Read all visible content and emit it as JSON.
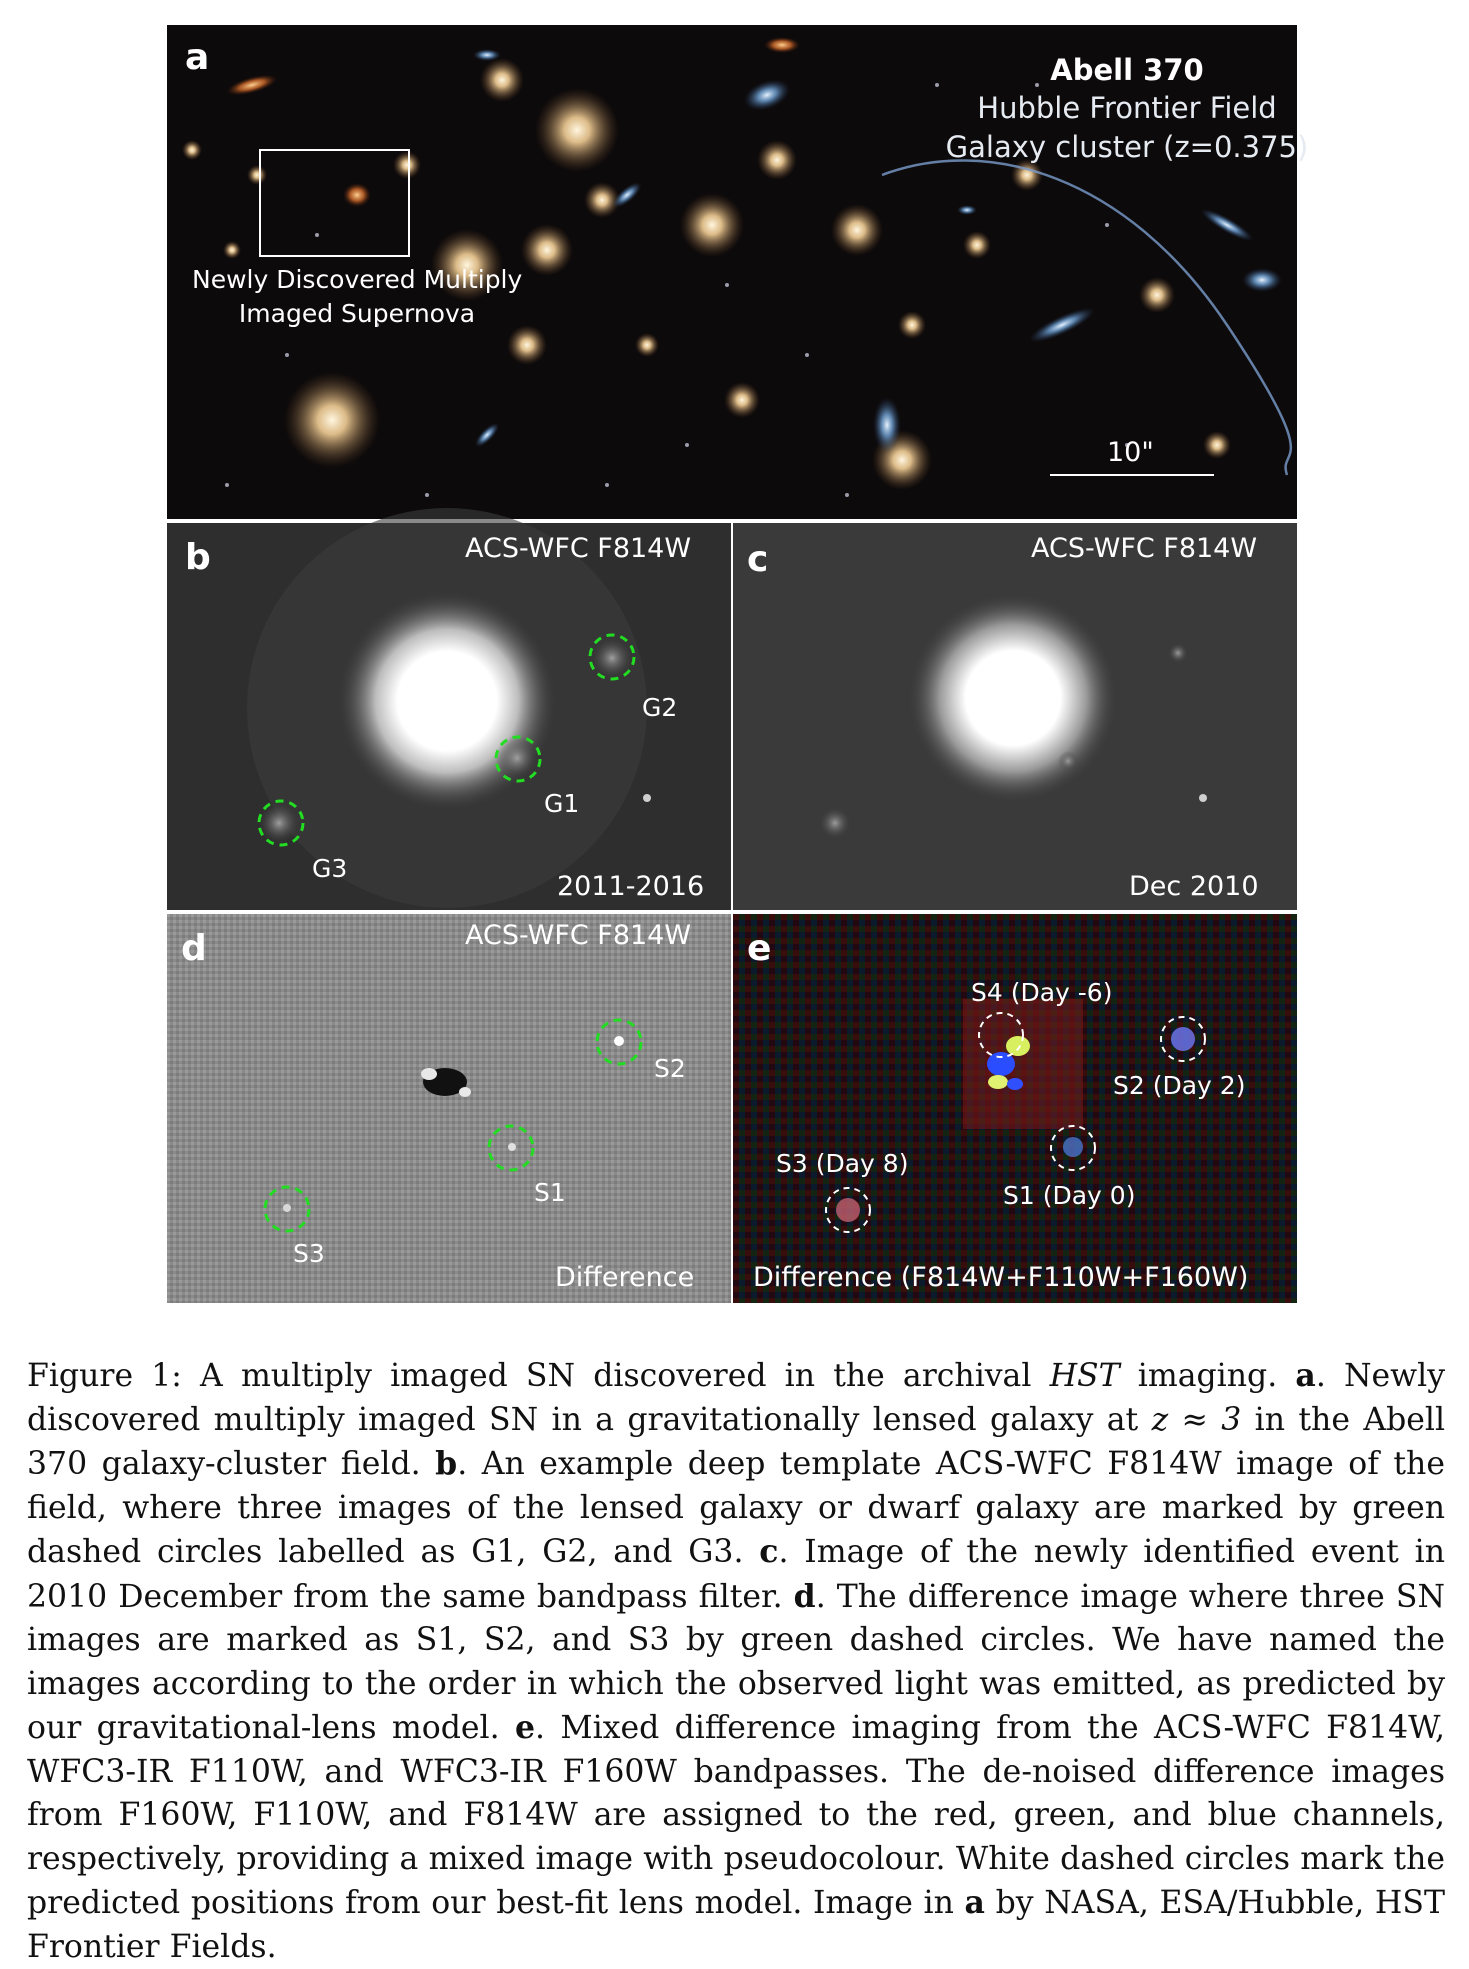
{
  "panel_a": {
    "letter": "a",
    "title": "Abell 370",
    "subtitle1": "Hubble Frontier Field",
    "subtitle2": "Galaxy cluster (z=0.375)",
    "sn_label_line1": "Newly Discovered Multiply",
    "sn_label_line2": "Imaged Supernova",
    "scale_label": "10\""
  },
  "panel_b": {
    "letter": "b",
    "filter": "ACS-WFC F814W",
    "date": "2011-2016",
    "markers": [
      "G1",
      "G2",
      "G3"
    ]
  },
  "panel_c": {
    "letter": "c",
    "filter": "ACS-WFC F814W",
    "date": "Dec 2010"
  },
  "panel_d": {
    "letter": "d",
    "filter": "ACS-WFC F814W",
    "footer": "Difference",
    "markers": [
      "S1",
      "S2",
      "S3"
    ]
  },
  "panel_e": {
    "letter": "e",
    "footer": "Difference (F814W+F110W+F160W)",
    "markers": [
      "S4 (Day -6)",
      "S2 (Day 2)",
      "S3 (Day 8)",
      "S1 (Day 0)"
    ]
  },
  "caption": {
    "label": "Figure 1:",
    "intro": "A multiply imaged SN discovered in the archival",
    "hst": "HST",
    "intro_end": "imaging.",
    "a_key": "a",
    "a_text": ". Newly discovered multiply imaged SN in a gravitationally lensed galaxy at",
    "z_expr": "z ≈ 3",
    "a_text2": "in the Abell 370 galaxy-cluster field.",
    "b_key": "b",
    "b_text": ". An example deep template ACS-WFC F814W image of the field, where three images of the lensed galaxy or dwarf galaxy are marked by green dashed circles labelled as G1, G2, and G3.",
    "c_key": "c",
    "c_text": ". Image of the newly identified event in 2010 December from the same bandpass filter.",
    "d_key": "d",
    "d_text": ". The difference image where three SN images are marked as S1, S2, and S3 by green dashed circles. We have named the images according to the order in which the observed light was emitted, as predicted by our gravitational-lens model.",
    "e_key": "e",
    "e_text": ". Mixed difference imaging from the ACS-WFC F814W, WFC3-IR F110W, and WFC3-IR F160W bandpasses. The de-noised difference images from F160W, F110W, and F814W are assigned to the red, green, and blue channels, respectively, providing a mixed image with pseudocolour. White dashed circles mark the predicted positions from our best-fit lens model. Image in",
    "a_key2": "a",
    "credit": "by NASA, ESA/Hubble, HST Frontier Fields."
  }
}
